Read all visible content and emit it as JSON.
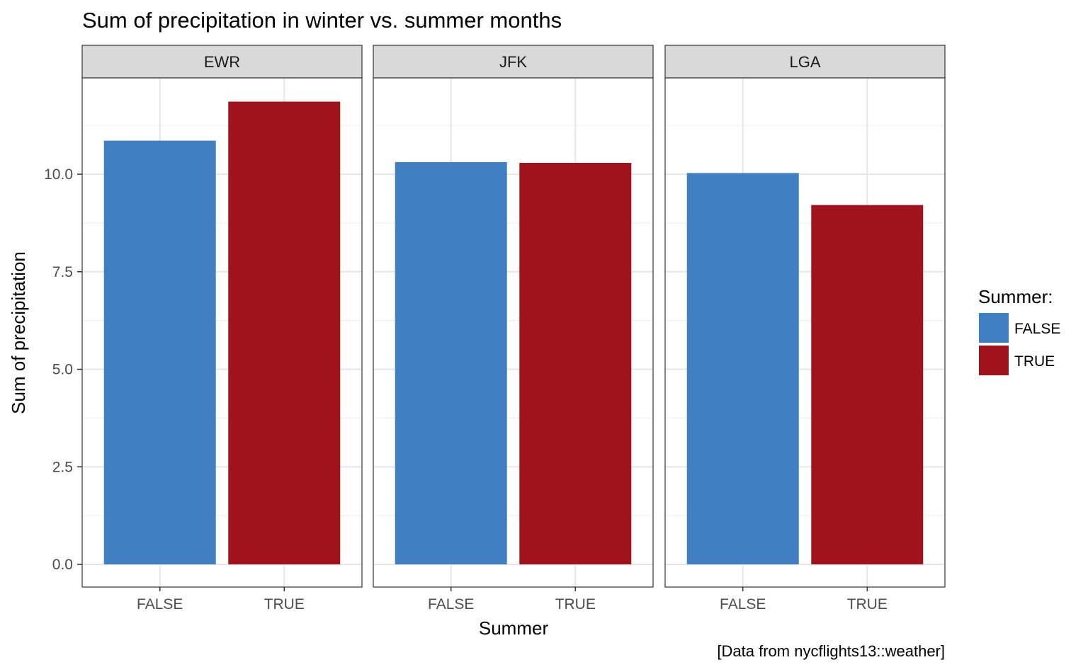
{
  "chart_data": {
    "type": "bar",
    "title": "Sum of precipitation in winter vs. summer months",
    "xlabel": "Summer",
    "ylabel": "Sum of precipitation",
    "caption": "[Data from nycflights13::weather]",
    "ylim": [
      0,
      12.45
    ],
    "yticks": [
      "0.0",
      "2.5",
      "5.0",
      "7.5",
      "10.0"
    ],
    "ytick_values": [
      0,
      2.5,
      5,
      7.5,
      10
    ],
    "grid": true,
    "categories": [
      "FALSE",
      "TRUE"
    ],
    "legend": {
      "title": "Summer:",
      "position": "right",
      "entries": [
        {
          "label": "FALSE",
          "color": "#4080c2"
        },
        {
          "label": "TRUE",
          "color": "#a0131c"
        }
      ]
    },
    "facets": [
      {
        "name": "EWR",
        "values": [
          10.86,
          11.86
        ]
      },
      {
        "name": "JFK",
        "values": [
          10.31,
          10.29
        ]
      },
      {
        "name": "LGA",
        "values": [
          10.03,
          9.21
        ]
      }
    ]
  }
}
